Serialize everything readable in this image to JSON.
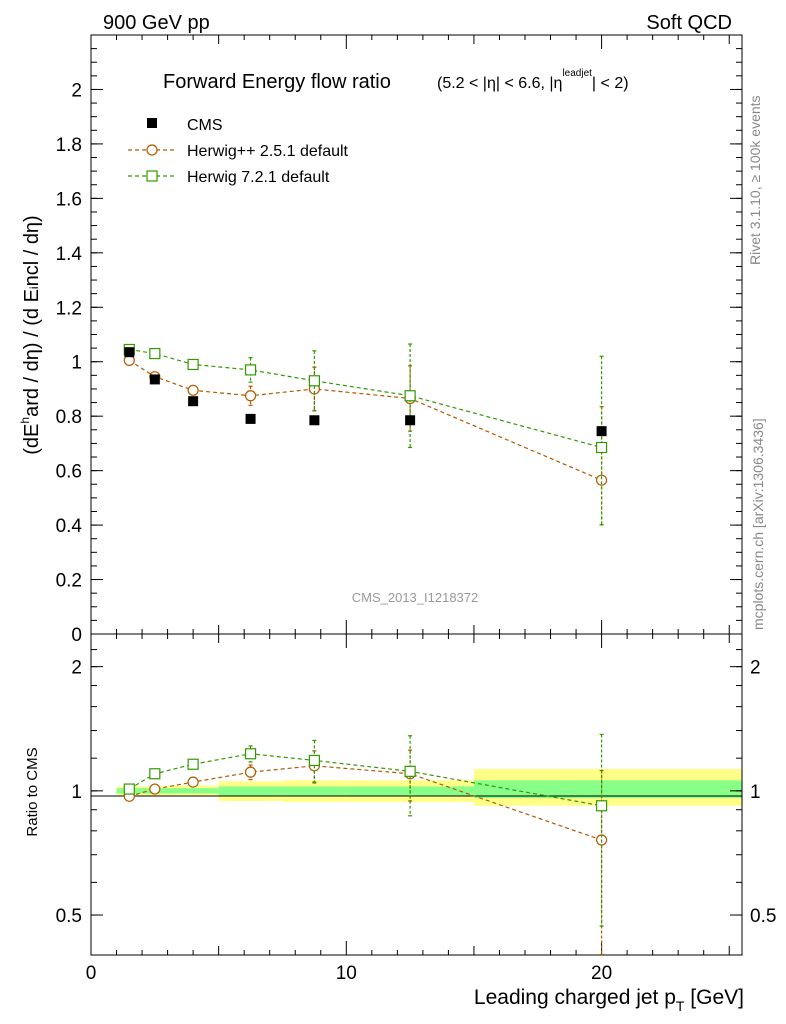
{
  "header": {
    "left": "900 GeV pp",
    "right": "Soft QCD"
  },
  "side_labels": {
    "rivet": "Rivet 3.1.10, ≥ 100k events",
    "mcplots": "mcplots.cern.ch [arXiv:1306.3436]"
  },
  "watermark": "CMS_2013_I1218372",
  "chart_data": [
    {
      "type": "scatter",
      "panel": "main",
      "title": "Forward Energy flow ratio",
      "title_cut": "(5.2 < |η| < 6.6, |η^leadjet| < 2)",
      "ylabel": "(dE^hard / dη) / (d E^incl / dη)",
      "xlim": [
        0,
        25.5
      ],
      "ylim": [
        0,
        2.2
      ],
      "yticks": [
        "0",
        "0.2",
        "0.4",
        "0.6",
        "0.8",
        "1",
        "1.2",
        "1.4",
        "1.6",
        "1.8",
        "2"
      ],
      "legend": [
        "CMS",
        "Herwig++ 2.5.1 default",
        "Herwig 7.2.1 default"
      ],
      "series": [
        {
          "name": "CMS",
          "color": "#000000",
          "x": [
            1.5,
            2.5,
            4.0,
            6.25,
            8.75,
            12.5,
            20.0
          ],
          "y": [
            1.035,
            0.935,
            0.855,
            0.79,
            0.785,
            0.785,
            0.745
          ]
        },
        {
          "name": "Herwig++ 2.5.1 default",
          "color": "#b35900",
          "x": [
            1.5,
            2.5,
            4.0,
            6.25,
            8.75,
            12.5,
            20.0
          ],
          "y": [
            1.005,
            0.945,
            0.895,
            0.875,
            0.9,
            0.865,
            0.565
          ],
          "yerr": [
            0.01,
            0.01,
            0.015,
            0.035,
            0.08,
            0.12,
            0.27
          ]
        },
        {
          "name": "Herwig 7.2.1 default",
          "color": "#339900",
          "x": [
            1.5,
            2.5,
            4.0,
            6.25,
            8.75,
            12.5,
            20.0
          ],
          "y": [
            1.045,
            1.03,
            0.99,
            0.97,
            0.93,
            0.875,
            0.685
          ],
          "yerr": [
            0.01,
            0.01,
            0.015,
            0.045,
            0.11,
            0.19,
            0.335
          ]
        }
      ]
    },
    {
      "type": "scatter",
      "panel": "ratio",
      "ylabel": "Ratio to CMS",
      "xlabel": "Leading charged jet p_T [GeV]",
      "xlim": [
        0,
        25.5
      ],
      "ylim": [
        0.4,
        2.4
      ],
      "yscale": "log",
      "xticks": [
        "0",
        "10",
        "20"
      ],
      "yticks": [
        "0.5",
        "1",
        "2"
      ],
      "bands": [
        {
          "x0": 1.0,
          "x1": 2.0,
          "yellow": [
            0.975,
            1.025
          ],
          "green": [
            0.985,
            1.015
          ]
        },
        {
          "x0": 2.0,
          "x1": 3.0,
          "yellow": [
            0.975,
            1.025
          ],
          "green": [
            0.985,
            1.015
          ]
        },
        {
          "x0": 3.0,
          "x1": 5.0,
          "yellow": [
            0.97,
            1.03
          ],
          "green": [
            0.985,
            1.015
          ]
        },
        {
          "x0": 5.0,
          "x1": 7.5,
          "yellow": [
            0.945,
            1.055
          ],
          "green": [
            0.975,
            1.025
          ]
        },
        {
          "x0": 7.5,
          "x1": 10.0,
          "yellow": [
            0.94,
            1.06
          ],
          "green": [
            0.975,
            1.025
          ]
        },
        {
          "x0": 10.0,
          "x1": 15.0,
          "yellow": [
            0.94,
            1.06
          ],
          "green": [
            0.975,
            1.025
          ]
        },
        {
          "x0": 15.0,
          "x1": 25.5,
          "yellow": [
            0.92,
            1.13
          ],
          "green": [
            0.96,
            1.06
          ]
        }
      ],
      "series": [
        {
          "name": "Herwig++ 2.5.1 default",
          "color": "#b35900",
          "x": [
            1.5,
            2.5,
            4.0,
            6.25,
            8.75,
            12.5,
            20.0
          ],
          "y": [
            0.97,
            1.01,
            1.05,
            1.11,
            1.15,
            1.1,
            0.76
          ],
          "yerr": [
            0.01,
            0.01,
            0.02,
            0.045,
            0.1,
            0.155,
            0.36
          ]
        },
        {
          "name": "Herwig 7.2.1 default",
          "color": "#339900",
          "x": [
            1.5,
            2.5,
            4.0,
            6.25,
            8.75,
            12.5,
            20.0
          ],
          "y": [
            1.01,
            1.1,
            1.16,
            1.23,
            1.185,
            1.115,
            0.92
          ],
          "yerr": [
            0.01,
            0.01,
            0.02,
            0.055,
            0.14,
            0.245,
            0.45
          ]
        }
      ]
    }
  ]
}
